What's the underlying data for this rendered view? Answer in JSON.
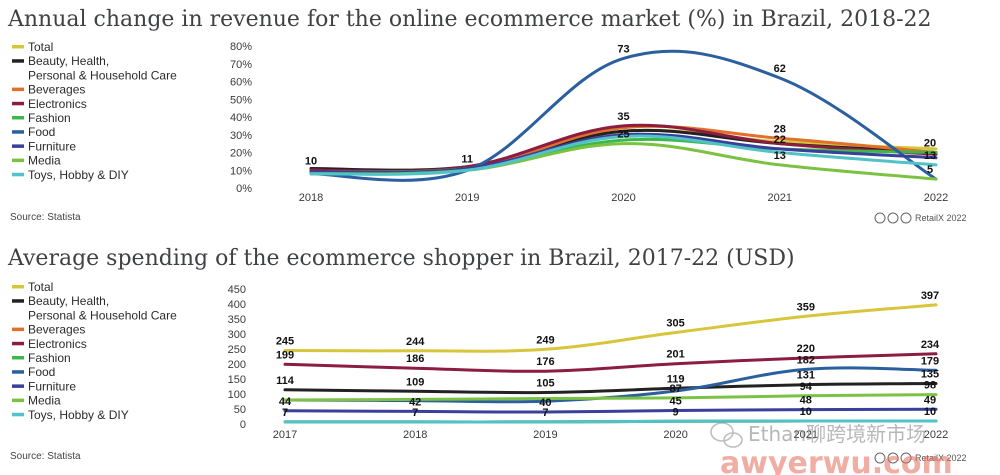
{
  "chart_data": [
    {
      "type": "line",
      "title": "Annual change in revenue for the online ecommerce market (%) in Brazil, 2018-22",
      "x": [
        "2018",
        "2019",
        "2020",
        "2021",
        "2022"
      ],
      "y_ticks": [
        "0%",
        "10%",
        "20%",
        "30%",
        "40%",
        "50%",
        "60%",
        "70%",
        "80%"
      ],
      "ylim": [
        0,
        80
      ],
      "legend_position": "left",
      "source": "Source: Statista",
      "credit": "RetailX 2022",
      "series": [
        {
          "name": "Total",
          "color": "#d8c53a",
          "values": [
            10,
            11,
            32,
            26,
            22
          ],
          "labels": [
            "10",
            "11",
            "",
            "",
            ""
          ]
        },
        {
          "name": "Beauty, Health, Personal & Household Care",
          "legend_lines": [
            "Beauty, Health,",
            "Personal & Household Care"
          ],
          "color": "#222222",
          "values": [
            11,
            12,
            32,
            25,
            20
          ],
          "labels": [
            "",
            "",
            "",
            "",
            "20"
          ]
        },
        {
          "name": "Beverages",
          "color": "#e0702a",
          "values": [
            10,
            11,
            34,
            28,
            20
          ],
          "labels": [
            "",
            "",
            "",
            "28",
            ""
          ]
        },
        {
          "name": "Electronics",
          "color": "#8c1d40",
          "values": [
            10,
            12,
            35,
            25,
            19
          ],
          "labels": [
            "",
            "",
            "35",
            "",
            ""
          ]
        },
        {
          "name": "Fashion",
          "color": "#3cb84a",
          "values": [
            9,
            11,
            27,
            22,
            20
          ],
          "labels": [
            "",
            "",
            "",
            "",
            ""
          ]
        },
        {
          "name": "Food",
          "color": "#2b5f9e",
          "values": [
            8,
            10,
            73,
            62,
            5
          ],
          "labels": [
            "",
            "",
            "73",
            "62",
            "5"
          ]
        },
        {
          "name": "Furniture",
          "color": "#3a3f9c",
          "values": [
            9,
            11,
            30,
            22,
            17
          ],
          "labels": [
            "",
            "",
            "",
            "22",
            ""
          ]
        },
        {
          "name": "Media",
          "color": "#7cc242",
          "values": [
            8,
            10,
            25,
            13,
            5
          ],
          "labels": [
            "",
            "",
            "25",
            "13",
            ""
          ]
        },
        {
          "name": "Toys, Hobby & DIY",
          "color": "#4fc3c8",
          "values": [
            8,
            10,
            29,
            20,
            13
          ],
          "labels": [
            "",
            "",
            "",
            "",
            "13"
          ]
        }
      ]
    },
    {
      "type": "line",
      "title": "Average spending of the ecommerce shopper in Brazil, 2017-22 (USD)",
      "x": [
        "2017",
        "2018",
        "2019",
        "2020",
        "2021",
        "2022"
      ],
      "y_ticks": [
        "0",
        "50",
        "100",
        "150",
        "200",
        "250",
        "300",
        "350",
        "400",
        "450"
      ],
      "ylim": [
        0,
        450
      ],
      "legend_position": "left",
      "source": "Source: Statista",
      "credit": "RetailX 2022",
      "series": [
        {
          "name": "Total",
          "color": "#d8c53a",
          "values": [
            245,
            244,
            249,
            305,
            359,
            397
          ],
          "labels": [
            "245",
            "244",
            "249",
            "305",
            "359",
            "397"
          ]
        },
        {
          "name": "Beauty, Health, Personal & Household Care",
          "legend_lines": [
            "Beauty, Health,",
            "Personal & Household Care"
          ],
          "color": "#222222",
          "values": [
            114,
            109,
            105,
            119,
            131,
            135
          ],
          "labels": [
            "114",
            "109",
            "105",
            "119",
            "131",
            "135"
          ]
        },
        {
          "name": "Beverages",
          "color": "#e0702a",
          "values": [
            7,
            7,
            7,
            9,
            10,
            10
          ],
          "labels": [
            "",
            "",
            "",
            "",
            "",
            ""
          ]
        },
        {
          "name": "Electronics",
          "color": "#8c1d40",
          "values": [
            199,
            186,
            176,
            201,
            220,
            234
          ],
          "labels": [
            "199",
            "186",
            "176",
            "201",
            "220",
            "234"
          ]
        },
        {
          "name": "Fashion",
          "color": "#3cb84a",
          "values": [
            7,
            7,
            7,
            9,
            10,
            10
          ],
          "labels": [
            "",
            "",
            "",
            "",
            "",
            ""
          ]
        },
        {
          "name": "Food",
          "color": "#2b5f9e",
          "values": [
            80,
            78,
            76,
            110,
            182,
            179
          ],
          "labels": [
            "",
            "",
            "",
            "",
            "182",
            "179"
          ]
        },
        {
          "name": "Furniture",
          "color": "#3a3f9c",
          "values": [
            44,
            42,
            40,
            45,
            48,
            49
          ],
          "labels": [
            "44",
            "42",
            "40",
            "45",
            "48",
            "49"
          ]
        },
        {
          "name": "Media",
          "color": "#7cc242",
          "values": [
            80,
            82,
            85,
            87,
            94,
            98
          ],
          "labels": [
            "",
            "",
            "",
            "87",
            "94",
            "98"
          ]
        },
        {
          "name": "Toys, Hobby & DIY",
          "color": "#4fc3c8",
          "values": [
            7,
            7,
            7,
            9,
            10,
            10
          ],
          "labels": [
            "7",
            "7",
            "7",
            "9",
            "10",
            "10"
          ]
        }
      ]
    }
  ],
  "watermark": {
    "chat_text": "Ethan聊跨境新市场",
    "site_text": "awyerwu.com"
  }
}
